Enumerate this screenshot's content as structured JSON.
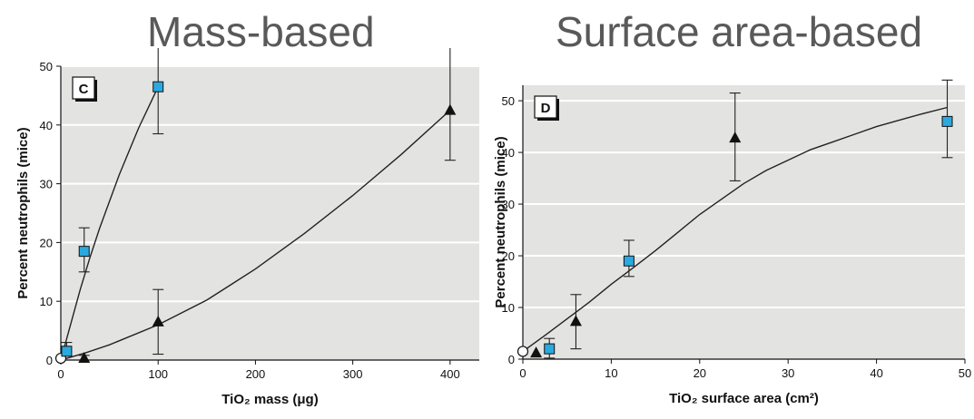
{
  "titles": {
    "left": "Mass-based",
    "right": "Surface area-based"
  },
  "chart_data": [
    {
      "type": "scatter",
      "panel_label": "C",
      "xlabel": "TiO₂ mass (μg)",
      "ylabel": "Percent neutrophils (mice)",
      "xlim": [
        0,
        430
      ],
      "ylim": [
        0,
        50
      ],
      "xticks": [
        0,
        100,
        200,
        300,
        400
      ],
      "yticks": [
        0,
        10,
        20,
        30,
        40,
        50
      ],
      "grid": true,
      "colors": {
        "square": "#2aa9df",
        "triangle": "#111111",
        "control": "#ffffff",
        "background": "#e3e4e2"
      },
      "series": [
        {
          "marker": "control",
          "points": [
            {
              "x": 0,
              "y": 0.3
            }
          ]
        },
        {
          "marker": "square",
          "points": [
            {
              "x": 6,
              "y": 1.5,
              "err_low": 1.5,
              "err_high": 3
            },
            {
              "x": 24,
              "y": 18.5,
              "err_low": 15,
              "err_high": 22.5
            },
            {
              "x": 100,
              "y": 46.5,
              "err_low": 38.5,
              "err_high": 55
            }
          ],
          "fit": [
            [
              0,
              0
            ],
            [
              10,
              6
            ],
            [
              20,
              12
            ],
            [
              30,
              17.5
            ],
            [
              40,
              22.5
            ],
            [
              50,
              27
            ],
            [
              60,
              31.5
            ],
            [
              70,
              35.5
            ],
            [
              80,
              39.5
            ],
            [
              90,
              43
            ],
            [
              100,
              46.5
            ]
          ]
        },
        {
          "marker": "triangle",
          "points": [
            {
              "x": 24,
              "y": 0.3,
              "err_low": 0,
              "err_high": 0.8
            },
            {
              "x": 100,
              "y": 6.5,
              "err_low": 1,
              "err_high": 12
            },
            {
              "x": 400,
              "y": 42.5,
              "err_low": 34,
              "err_high": 55
            }
          ],
          "fit": [
            [
              0,
              0
            ],
            [
              25,
              1.2
            ],
            [
              50,
              2.6
            ],
            [
              100,
              6
            ],
            [
              150,
              10.2
            ],
            [
              200,
              15.5
            ],
            [
              250,
              21.5
            ],
            [
              300,
              28
            ],
            [
              350,
              35
            ],
            [
              400,
              42.5
            ]
          ]
        }
      ]
    },
    {
      "type": "scatter",
      "panel_label": "D",
      "xlabel": "TiO₂ surface area (cm²)",
      "ylabel": "Percent neutrophils (mice)",
      "xlim": [
        0,
        50
      ],
      "ylim": [
        0,
        53
      ],
      "xticks": [
        0,
        10,
        20,
        30,
        40,
        50
      ],
      "yticks": [
        0,
        10,
        20,
        30,
        40,
        50
      ],
      "grid": true,
      "colors": {
        "square": "#2aa9df",
        "triangle": "#111111",
        "control": "#ffffff",
        "background": "#e3e4e2"
      },
      "series": [
        {
          "marker": "control",
          "points": [
            {
              "x": 0,
              "y": 1.5
            }
          ]
        },
        {
          "marker": "square",
          "points": [
            {
              "x": 3,
              "y": 2,
              "err_low": 0.2,
              "err_high": 4
            },
            {
              "x": 12,
              "y": 19,
              "err_low": 16,
              "err_high": 23
            },
            {
              "x": 48,
              "y": 46,
              "err_low": 39,
              "err_high": 54
            }
          ]
        },
        {
          "marker": "triangle",
          "points": [
            {
              "x": 1.5,
              "y": 1.2
            },
            {
              "x": 6,
              "y": 7.3,
              "err_low": 2,
              "err_high": 12.5
            },
            {
              "x": 24,
              "y": 42.8,
              "err_low": 34.5,
              "err_high": 51.5
            }
          ]
        }
      ],
      "fit": [
        [
          0,
          1.5
        ],
        [
          2.5,
          4.6
        ],
        [
          5,
          7.8
        ],
        [
          7.5,
          11
        ],
        [
          10,
          14.5
        ],
        [
          12.5,
          17.7
        ],
        [
          15,
          21
        ],
        [
          17.5,
          24.5
        ],
        [
          20,
          28
        ],
        [
          22.5,
          31
        ],
        [
          25,
          34
        ],
        [
          27.5,
          36.5
        ],
        [
          30,
          38.5
        ],
        [
          32.5,
          40.5
        ],
        [
          35,
          42
        ],
        [
          37.5,
          43.5
        ],
        [
          40,
          45
        ],
        [
          42.5,
          46.2
        ],
        [
          45,
          47.4
        ],
        [
          48,
          48.7
        ]
      ]
    }
  ]
}
